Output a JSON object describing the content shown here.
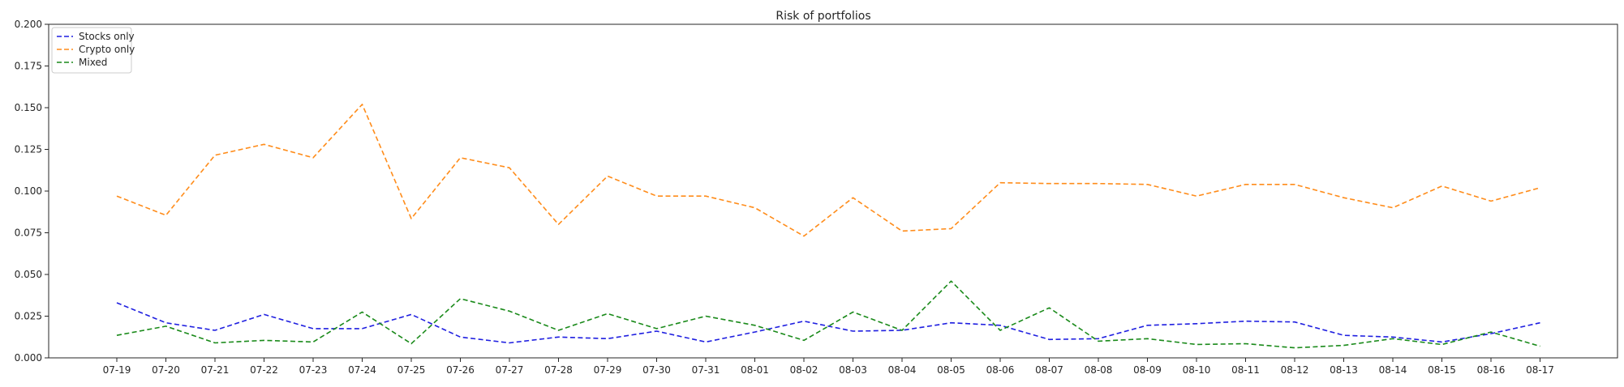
{
  "chart_data": {
    "type": "line",
    "title": "Risk of portfolios",
    "xlabel": "",
    "ylabel": "",
    "x": [
      "07-19",
      "07-20",
      "07-21",
      "07-22",
      "07-23",
      "07-24",
      "07-25",
      "07-26",
      "07-27",
      "07-28",
      "07-29",
      "07-30",
      "07-31",
      "08-01",
      "08-02",
      "08-03",
      "08-04",
      "08-05",
      "08-06",
      "08-07",
      "08-08",
      "08-09",
      "08-10",
      "08-11",
      "08-12",
      "08-13",
      "08-14",
      "08-15",
      "08-16",
      "08-17"
    ],
    "ylim": [
      0,
      0.2
    ],
    "yticks": [
      "0.000",
      "0.025",
      "0.050",
      "0.075",
      "0.100",
      "0.125",
      "0.150",
      "0.175",
      "0.200"
    ],
    "grid": false,
    "legend_position": "top-left",
    "series": [
      {
        "name": "Stocks only",
        "color": "#1f1fe0",
        "style": "dashed",
        "values": [
          0.033,
          0.021,
          0.0165,
          0.026,
          0.0175,
          0.0175,
          0.026,
          0.0125,
          0.009,
          0.0125,
          0.0115,
          0.016,
          0.0095,
          0.0155,
          0.022,
          0.016,
          0.0165,
          0.021,
          0.0195,
          0.011,
          0.0115,
          0.0195,
          0.0205,
          0.022,
          0.0215,
          0.0135,
          0.0125,
          0.0095,
          0.0145,
          0.021
        ]
      },
      {
        "name": "Crypto only",
        "color": "#ff8c1a",
        "style": "dashed",
        "values": [
          0.097,
          0.0855,
          0.1215,
          0.128,
          0.12,
          0.152,
          0.0835,
          0.12,
          0.114,
          0.08,
          0.109,
          0.097,
          0.097,
          0.09,
          0.073,
          0.096,
          0.076,
          0.0775,
          0.105,
          0.1045,
          0.1045,
          0.104,
          0.097,
          0.104,
          0.104,
          0.096,
          0.09,
          0.103,
          0.094,
          0.102
        ]
      },
      {
        "name": "Mixed",
        "color": "#1a8a1a",
        "style": "dashed",
        "values": [
          0.0135,
          0.019,
          0.009,
          0.0105,
          0.0095,
          0.0275,
          0.0085,
          0.0355,
          0.028,
          0.0165,
          0.0265,
          0.0175,
          0.025,
          0.0195,
          0.0105,
          0.0275,
          0.0165,
          0.046,
          0.0165,
          0.03,
          0.01,
          0.0115,
          0.008,
          0.0085,
          0.006,
          0.0075,
          0.0115,
          0.008,
          0.0155,
          0.007
        ]
      }
    ]
  }
}
